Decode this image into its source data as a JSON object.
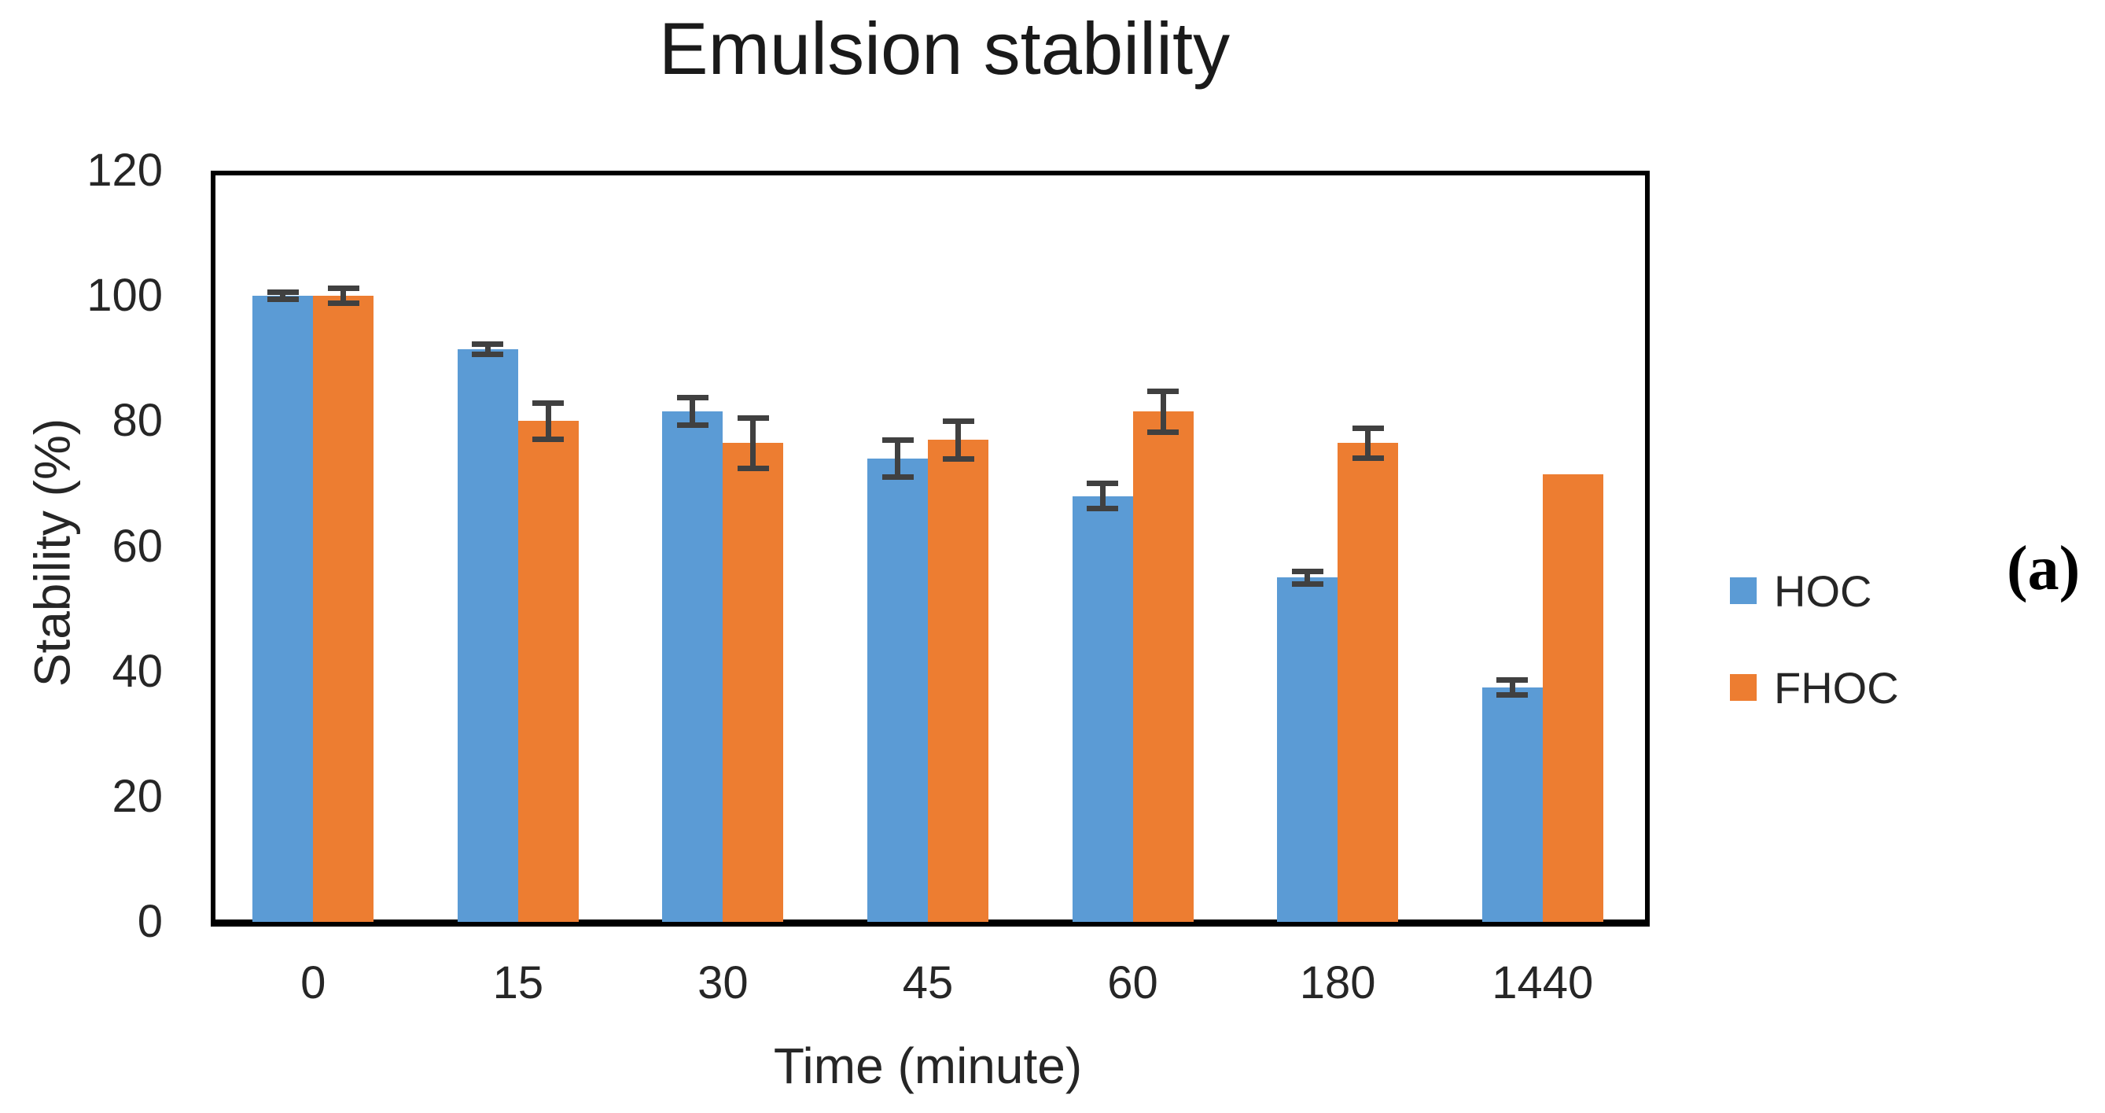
{
  "panel_label": "(a)",
  "chart_data": {
    "type": "bar",
    "title": "Emulsion stability",
    "xlabel": "Time (minute)",
    "ylabel": "Stability (%)",
    "ylim": [
      0,
      120
    ],
    "yticks": [
      0,
      20,
      40,
      60,
      80,
      100,
      120
    ],
    "grid": false,
    "legend_position": "right",
    "categories": [
      "0",
      "15",
      "30",
      "45",
      "60",
      "180",
      "1440"
    ],
    "series": [
      {
        "name": "HOC",
        "color": "#5B9BD5",
        "values": [
          100,
          91.5,
          81.5,
          74,
          68,
          55,
          37.5
        ],
        "errors": [
          0.6,
          0.8,
          2.2,
          3,
          2,
          1,
          1.2
        ]
      },
      {
        "name": "FHOC",
        "color": "#ED7D31",
        "values": [
          100,
          80,
          76.5,
          77,
          81.5,
          76.5,
          71.5
        ],
        "errors": [
          1.2,
          2.9,
          4,
          3,
          3.3,
          2.4,
          null
        ]
      }
    ],
    "error_bar_color": "#404040"
  }
}
